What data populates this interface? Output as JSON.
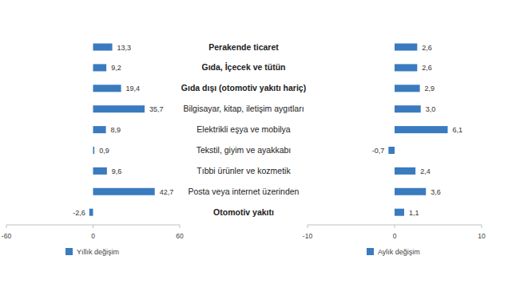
{
  "chart_data": [
    {
      "type": "bar",
      "orientation": "horizontal",
      "categories": [
        "Perakende ticaret",
        "Gıda, İçecek ve tütün",
        "Gıda dışı (otomotiv yakıtı hariç)",
        "Bilgisayar, kitap, iletişim aygıtları",
        "Elektrikli eşya ve mobilya",
        "Tekstil, giyim ve ayakkabı",
        "Tıbbi ürünler ve kozmetik",
        "Posta veya internet üzerinden",
        "Otomotiv yakıtı"
      ],
      "series": [
        {
          "name": "Yıllık değişim",
          "color": "#3a7bbf",
          "values": [
            13.3,
            9.2,
            19.4,
            35.7,
            8.9,
            0.9,
            9.6,
            42.7,
            -2.6
          ],
          "value_labels": [
            "13,3",
            "9,2",
            "19,4",
            "35,7",
            "8,9",
            "0,9",
            "9,6",
            "42,7",
            "-2,6"
          ]
        }
      ],
      "xlim": [
        -60,
        60
      ],
      "xticks": [
        -60,
        0,
        60
      ],
      "data_labels": true,
      "legend": "bottom",
      "grid": false
    },
    {
      "type": "bar",
      "orientation": "horizontal",
      "categories": [
        "Perakende ticaret",
        "Gıda, İçecek ve tütün",
        "Gıda dışı (otomotiv yakıtı hariç)",
        "Bilgisayar, kitap, iletişim aygıtları",
        "Elektrikli eşya ve mobilya",
        "Tekstil, giyim ve ayakkabı",
        "Tıbbi ürünler ve kozmetik",
        "Posta veya internet üzerinden",
        "Otomotiv yakıtı"
      ],
      "series": [
        {
          "name": "Aylık değişim",
          "color": "#3a7bbf",
          "values": [
            2.6,
            2.6,
            2.9,
            3.0,
            6.1,
            -0.7,
            2.4,
            3.6,
            1.1
          ],
          "value_labels": [
            "2,6",
            "2,6",
            "2,9",
            "3,0",
            "6,1",
            "-0,7",
            "2,4",
            "3,6",
            "1,1"
          ]
        }
      ],
      "xlim": [
        -10,
        10
      ],
      "xticks": [
        -10,
        0,
        10
      ],
      "data_labels": true,
      "legend": "bottom",
      "grid": false
    }
  ]
}
